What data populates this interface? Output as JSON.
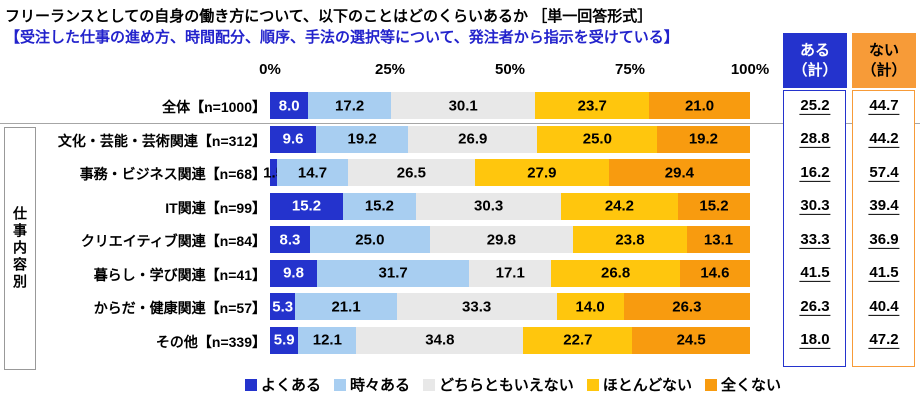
{
  "page": {
    "title": "フリーランスとしての自身の働き方について、以下のことはどのくらいあるか ［単一回答形式］",
    "subtitle": "【受注した仕事の進め方、時間配分、順序、手法の選択等について、発注者から指示を受けている】",
    "group_label": "仕事内容別"
  },
  "colors": {
    "subtitle_blue": "#2323cc",
    "divider_gray": "#a6a6a6"
  },
  "chart_data": {
    "type": "bar",
    "stacked": true,
    "orientation": "horizontal",
    "title": "フリーランスとしての自身の働き方について、以下のことはどのくらいあるか ［単一回答形式］",
    "subtitle": "【受注した仕事の進め方、時間配分、順序、手法の選択等について、発注者から指示を受けている】",
    "x_ticks": [
      "0%",
      "25%",
      "50%",
      "75%",
      "100%"
    ],
    "xlim": [
      0,
      100
    ],
    "legend_position": "bottom",
    "categories": [
      "全体【n=1000】",
      "文化・芸能・芸術関連【n=312】",
      "事務・ビジネス関連【n=68】",
      "IT関連【n=99】",
      "クリエイティブ関連【n=84】",
      "暮らし・学び関連【n=41】",
      "からだ・健康関連【n=57】",
      "その他【n=339】"
    ],
    "series": [
      {
        "name": "よくある",
        "color": "#2433cd",
        "values": [
          8.0,
          9.6,
          1.5,
          15.2,
          8.3,
          9.8,
          5.3,
          5.9
        ]
      },
      {
        "name": "時々ある",
        "color": "#a8cef1",
        "values": [
          17.2,
          19.2,
          14.7,
          15.2,
          25.0,
          31.7,
          21.1,
          12.1
        ]
      },
      {
        "name": "どちらともいえない",
        "color": "#e8e8e8",
        "values": [
          30.1,
          26.9,
          26.5,
          30.3,
          29.8,
          17.1,
          33.3,
          34.8
        ]
      },
      {
        "name": "ほとんどない",
        "color": "#ffc60d",
        "values": [
          23.7,
          25.0,
          27.9,
          24.2,
          23.8,
          26.8,
          14.0,
          22.7
        ]
      },
      {
        "name": "全くない",
        "color": "#f89b0f",
        "values": [
          21.0,
          19.2,
          29.4,
          15.2,
          13.1,
          14.6,
          26.3,
          24.5
        ]
      }
    ],
    "summary_columns": [
      {
        "label": "ある（計）",
        "lines": [
          "ある",
          "（計）"
        ],
        "header_bg": "#2433cd",
        "header_text": "#ffffff",
        "border_color": "#2433cd",
        "values": [
          25.2,
          28.8,
          16.2,
          30.3,
          33.3,
          41.5,
          26.3,
          18.0
        ]
      },
      {
        "label": "ない（計）",
        "lines": [
          "ない",
          "（計）"
        ],
        "header_bg": "#f79b38",
        "header_text": "#000000",
        "border_color": "#f79b38",
        "values": [
          44.7,
          44.2,
          57.4,
          39.4,
          36.9,
          41.5,
          40.4,
          47.2
        ]
      }
    ]
  }
}
